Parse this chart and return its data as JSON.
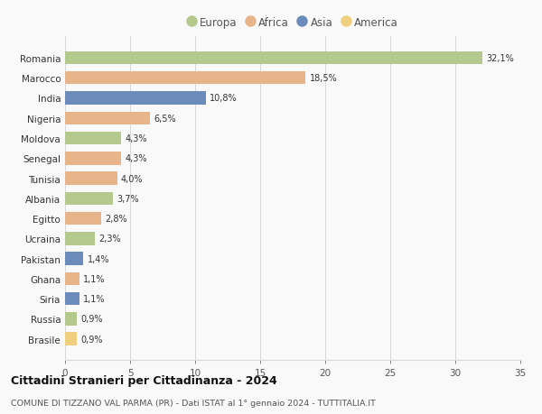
{
  "countries": [
    "Romania",
    "Marocco",
    "India",
    "Nigeria",
    "Moldova",
    "Senegal",
    "Tunisia",
    "Albania",
    "Egitto",
    "Ucraina",
    "Pakistan",
    "Ghana",
    "Siria",
    "Russia",
    "Brasile"
  ],
  "values": [
    32.1,
    18.5,
    10.8,
    6.5,
    4.3,
    4.3,
    4.0,
    3.7,
    2.8,
    2.3,
    1.4,
    1.1,
    1.1,
    0.9,
    0.9
  ],
  "labels": [
    "32,1%",
    "18,5%",
    "10,8%",
    "6,5%",
    "4,3%",
    "4,3%",
    "4,0%",
    "3,7%",
    "2,8%",
    "2,3%",
    "1,4%",
    "1,1%",
    "1,1%",
    "0,9%",
    "0,9%"
  ],
  "continents": [
    "Europa",
    "Africa",
    "Asia",
    "Africa",
    "Europa",
    "Africa",
    "Africa",
    "Europa",
    "Africa",
    "Europa",
    "Asia",
    "Africa",
    "Asia",
    "Europa",
    "America"
  ],
  "colors": {
    "Europa": "#b5c98e",
    "Africa": "#e8b48a",
    "Asia": "#6b8cba",
    "America": "#f0d080"
  },
  "title": "Cittadini Stranieri per Cittadinanza - 2024",
  "subtitle": "COMUNE DI TIZZANO VAL PARMA (PR) - Dati ISTAT al 1° gennaio 2024 - TUTTITALIA.IT",
  "xlim": [
    0,
    35
  ],
  "xticks": [
    0,
    5,
    10,
    15,
    20,
    25,
    30,
    35
  ],
  "background_color": "#f9f9f9",
  "grid_color": "#d8d8d8"
}
